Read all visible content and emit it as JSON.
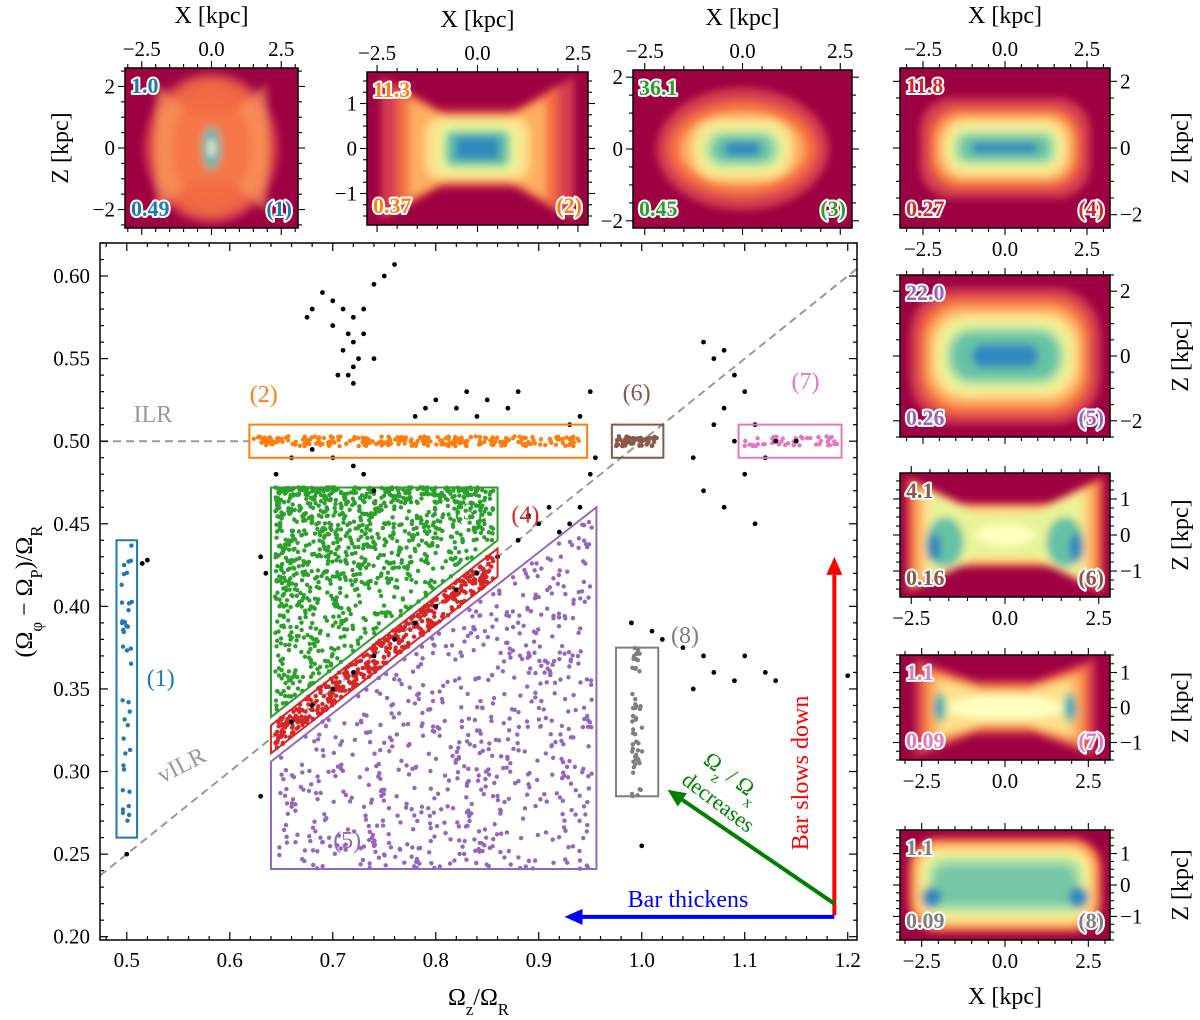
{
  "chart_data": {
    "type": "scatter",
    "xlabel": "Ω_{z}/Ω_{R}",
    "ylabel": "(Ω_{φ} − Ω_{P})/Ω_{R}",
    "xlim": [
      0.474,
      1.209
    ],
    "ylim": [
      0.198,
      0.62
    ],
    "xticks": [
      0.5,
      0.6,
      0.7,
      0.8,
      0.9,
      1.0,
      1.1,
      1.2
    ],
    "xtick_labels": [
      "0.5",
      "0.6",
      "0.7",
      "0.8",
      "0.9",
      "1.0",
      "1.1",
      "1.2"
    ],
    "yticks": [
      0.2,
      0.25,
      0.3,
      0.35,
      0.4,
      0.45,
      0.5,
      0.55,
      0.6
    ],
    "ytick_labels": [
      "0.20",
      "0.25",
      "0.30",
      "0.35",
      "0.40",
      "0.45",
      "0.50",
      "0.55",
      "0.60"
    ],
    "grid": false,
    "lines": [
      {
        "label": "ILR",
        "type": "horizontal",
        "y": 0.5,
        "color": "#999999",
        "style": "dashed"
      },
      {
        "label": "vILR",
        "type": "diagonal",
        "slope": 0.5,
        "intercept": 0.0,
        "color": "#999999",
        "style": "dashed"
      }
    ],
    "background_points_color": "#000000",
    "background_points": [
      [
        0.69,
        0.59
      ],
      [
        0.7,
        0.585
      ],
      [
        0.71,
        0.58
      ],
      [
        0.72,
        0.575
      ],
      [
        0.7,
        0.57
      ],
      [
        0.715,
        0.565
      ],
      [
        0.72,
        0.56
      ],
      [
        0.71,
        0.555
      ],
      [
        0.725,
        0.55
      ],
      [
        0.72,
        0.545
      ],
      [
        0.715,
        0.54
      ],
      [
        0.72,
        0.535
      ],
      [
        0.705,
        0.54
      ],
      [
        0.73,
        0.58
      ],
      [
        0.74,
        0.595
      ],
      [
        0.76,
        0.607
      ],
      [
        0.75,
        0.6
      ],
      [
        0.73,
        0.565
      ],
      [
        0.675,
        0.575
      ],
      [
        0.68,
        0.58
      ],
      [
        0.74,
        0.55
      ],
      [
        0.79,
        0.52
      ],
      [
        0.8,
        0.525
      ],
      [
        0.82,
        0.52
      ],
      [
        0.83,
        0.53
      ],
      [
        0.84,
        0.515
      ],
      [
        0.85,
        0.525
      ],
      [
        0.78,
        0.515
      ],
      [
        0.88,
        0.53
      ],
      [
        0.87,
        0.52
      ],
      [
        0.93,
        0.51
      ],
      [
        0.94,
        0.515
      ],
      [
        0.95,
        0.53
      ],
      [
        0.95,
        0.48
      ],
      [
        0.94,
        0.46
      ],
      [
        0.93,
        0.45
      ],
      [
        0.92,
        0.445
      ],
      [
        0.955,
        0.49
      ],
      [
        1.06,
        0.56
      ],
      [
        1.07,
        0.55
      ],
      [
        1.08,
        0.555
      ],
      [
        1.09,
        0.54
      ],
      [
        1.1,
        0.53
      ],
      [
        1.08,
        0.52
      ],
      [
        1.07,
        0.51
      ],
      [
        1.09,
        0.5
      ],
      [
        1.11,
        0.51
      ],
      [
        1.12,
        0.49
      ],
      [
        1.1,
        0.48
      ],
      [
        1.08,
        0.46
      ],
      [
        1.06,
        0.47
      ],
      [
        1.11,
        0.45
      ],
      [
        1.13,
        0.5
      ],
      [
        1.05,
        0.49
      ],
      [
        1.15,
        0.5
      ],
      [
        0.99,
        0.39
      ],
      [
        1.01,
        0.385
      ],
      [
        1.02,
        0.38
      ],
      [
        1.04,
        0.375
      ],
      [
        1.06,
        0.37
      ],
      [
        1.07,
        0.36
      ],
      [
        1.05,
        0.35
      ],
      [
        1.09,
        0.355
      ],
      [
        1.1,
        0.37
      ],
      [
        1.12,
        0.36
      ],
      [
        1.13,
        0.355
      ],
      [
        1.0,
        0.255
      ],
      [
        1.2,
        0.358
      ],
      [
        0.66,
        0.33
      ],
      [
        0.68,
        0.34
      ],
      [
        0.7,
        0.35
      ],
      [
        0.72,
        0.36
      ],
      [
        0.74,
        0.37
      ],
      [
        0.76,
        0.38
      ],
      [
        0.78,
        0.39
      ],
      [
        0.8,
        0.4
      ],
      [
        0.82,
        0.41
      ],
      [
        0.84,
        0.42
      ],
      [
        0.86,
        0.43
      ],
      [
        0.88,
        0.44
      ],
      [
        0.9,
        0.45
      ],
      [
        0.91,
        0.46
      ],
      [
        0.89,
        0.455
      ],
      [
        0.52,
        0.428
      ],
      [
        0.515,
        0.426
      ],
      [
        0.5,
        0.25
      ],
      [
        0.635,
        0.42
      ],
      [
        0.63,
        0.43
      ],
      [
        0.63,
        0.285
      ],
      [
        0.645,
        0.48
      ],
      [
        0.66,
        0.49
      ],
      [
        0.68,
        0.495
      ],
      [
        0.7,
        0.49
      ],
      [
        0.72,
        0.485
      ],
      [
        0.73,
        0.48
      ],
      [
        0.74,
        0.47
      ]
    ],
    "groups": [
      {
        "id": "(1)",
        "color": "#1f77b4",
        "region": [
          [
            0.49,
            0.26
          ],
          [
            0.51,
            0.26
          ],
          [
            0.51,
            0.44
          ],
          [
            0.49,
            0.44
          ]
        ]
      },
      {
        "id": "(2)",
        "color": "#ff7f0e",
        "region": [
          [
            0.619,
            0.49
          ],
          [
            0.947,
            0.49
          ],
          [
            0.947,
            0.51
          ],
          [
            0.619,
            0.51
          ]
        ]
      },
      {
        "id": "(3)",
        "color": "#2ca02c",
        "region": [
          [
            0.64,
            0.333
          ],
          [
            0.64,
            0.472
          ],
          [
            0.86,
            0.472
          ],
          [
            0.86,
            0.44
          ]
        ]
      },
      {
        "id": "(4)",
        "color": "#d62728",
        "region": [
          [
            0.64,
            0.311
          ],
          [
            0.64,
            0.328
          ],
          [
            0.86,
            0.435
          ],
          [
            0.86,
            0.418
          ]
        ]
      },
      {
        "id": "(5)",
        "color": "#9467bd",
        "region": [
          [
            0.64,
            0.241
          ],
          [
            0.64,
            0.306
          ],
          [
            0.956,
            0.46
          ],
          [
            0.956,
            0.241
          ]
        ]
      },
      {
        "id": "(6)",
        "color": "#8c564b",
        "region": [
          [
            0.971,
            0.49
          ],
          [
            1.021,
            0.49
          ],
          [
            1.021,
            0.51
          ],
          [
            0.971,
            0.51
          ]
        ]
      },
      {
        "id": "(7)",
        "color": "#e377c2",
        "region": [
          [
            1.094,
            0.49
          ],
          [
            1.194,
            0.49
          ],
          [
            1.194,
            0.51
          ],
          [
            1.094,
            0.51
          ]
        ]
      },
      {
        "id": "(8)",
        "color": "#7f7f7f",
        "region": [
          [
            0.975,
            0.285
          ],
          [
            1.016,
            0.285
          ],
          [
            1.016,
            0.375
          ],
          [
            0.975,
            0.375
          ]
        ]
      }
    ],
    "annotations": [
      {
        "text": "Bar slows down",
        "color": "#ff0000",
        "arrow_from": [
          1.187,
          0.213
        ],
        "arrow_to": [
          1.187,
          0.43
        ]
      },
      {
        "text": "Bar thickens",
        "color": "#0000ff",
        "arrow_from": [
          1.187,
          0.212
        ],
        "arrow_to": [
          0.925,
          0.212
        ]
      },
      {
        "text": "Ω_{z} / Ω_{x}",
        "text2": "decreases",
        "color": "#008000",
        "arrow_from": [
          1.187,
          0.22
        ],
        "arrow_to": [
          1.025,
          0.289
        ]
      }
    ]
  },
  "insets": [
    {
      "id": "(1)",
      "top_value": "1.0",
      "bottom_value": "0.49",
      "color": "#1f77b4",
      "xlabel": "X [kpc]",
      "ylabel": "Z [kpc]",
      "xticks": [
        "−2.5",
        "0.0",
        "2.5"
      ],
      "yticks": [
        "2",
        "0",
        "−2"
      ]
    },
    {
      "id": "(2)",
      "top_value": "11.3",
      "bottom_value": "0.37",
      "color": "#ff7f0e",
      "xlabel": "X [kpc]",
      "xticks": [
        "−2.5",
        "0.0",
        "2.5"
      ],
      "yticks": [
        "1",
        "0",
        "−1"
      ]
    },
    {
      "id": "(3)",
      "top_value": "36.1",
      "bottom_value": "0.45",
      "color": "#2ca02c",
      "xlabel": "X [kpc]",
      "xticks": [
        "−2.5",
        "0.0",
        "2.5"
      ],
      "yticks": [
        "2",
        "0",
        "−2"
      ]
    },
    {
      "id": "(4)",
      "top_value": "11.8",
      "bottom_value": "0.27",
      "color": "#d62728",
      "xlabel": "X [kpc]",
      "ylabel": "Z [kpc]",
      "xticks": [
        "−2.5",
        "0.0",
        "2.5"
      ],
      "yticks": [
        "2",
        "0",
        "−2"
      ]
    },
    {
      "id": "(5)",
      "top_value": "22.0",
      "bottom_value": "0.26",
      "color": "#9467bd",
      "ylabel": "Z [kpc]",
      "yticks": [
        "2",
        "0",
        "−2"
      ]
    },
    {
      "id": "(6)",
      "top_value": "4.1",
      "bottom_value": "0.16",
      "color": "#8c564b",
      "ylabel": "Z [kpc]",
      "xticks": [
        "−2.5",
        "0.0",
        "2.5"
      ],
      "yticks": [
        "1",
        "0",
        "−1"
      ]
    },
    {
      "id": "(7)",
      "top_value": "1.1",
      "bottom_value": "0.09",
      "color": "#e377c2",
      "ylabel": "Z [kpc]",
      "xticks": [
        "−2.5",
        "0.0",
        "2.5"
      ],
      "yticks": [
        "1",
        "0",
        "−1"
      ]
    },
    {
      "id": "(8)",
      "top_value": "1.1",
      "bottom_value": "0.09",
      "color": "#7f7f7f",
      "xlabel": "X [kpc]",
      "ylabel": "Z [kpc]",
      "xticks": [
        "−2.5",
        "0.0",
        "2.5"
      ],
      "yticks": [
        "1",
        "0",
        "−1"
      ]
    }
  ],
  "colormap": [
    "#9e0142",
    "#d53e4f",
    "#f46d43",
    "#fdae61",
    "#fee08b",
    "#ffffbf",
    "#e6f598",
    "#abdda4",
    "#66c2a5",
    "#3288bd"
  ]
}
